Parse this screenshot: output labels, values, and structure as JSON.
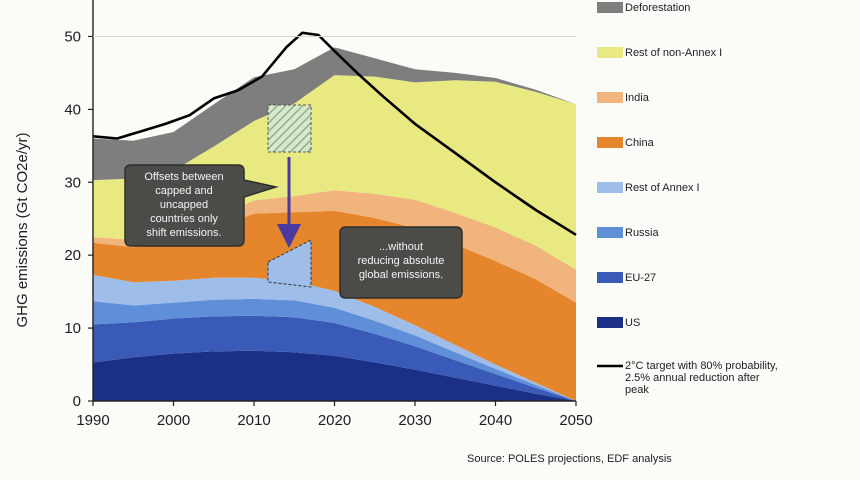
{
  "chart_data": {
    "type": "area",
    "ylabel": "GHG emissions (Gt CO2e/yr)",
    "xlabel": "",
    "xlim": [
      1990,
      2050
    ],
    "ylim": [
      0,
      55
    ],
    "x_ticks": [
      "1990",
      "2000",
      "2010",
      "2020",
      "2030",
      "2040",
      "2050"
    ],
    "y_ticks": [
      "0",
      "10",
      "20",
      "30",
      "40",
      "50"
    ],
    "x": [
      1990,
      1995,
      2000,
      2005,
      2010,
      2015,
      2020,
      2025,
      2030,
      2035,
      2040,
      2045,
      2050
    ],
    "stack_order": [
      "US",
      "EU-27",
      "Russia",
      "Rest of Annex I",
      "China",
      "India",
      "Rest of non-Annex I",
      "Deforestation"
    ],
    "series": [
      {
        "name": "US",
        "color": "#1c2f86",
        "values": [
          5.3,
          6.0,
          6.5,
          6.8,
          6.9,
          6.7,
          6.2,
          5.3,
          4.3,
          3.2,
          2.1,
          1.0,
          0.0
        ]
      },
      {
        "name": "EU-27",
        "color": "#3a5ab8",
        "values": [
          5.2,
          4.8,
          4.8,
          4.8,
          4.8,
          4.8,
          4.5,
          3.9,
          3.2,
          2.4,
          1.6,
          0.8,
          0.0
        ]
      },
      {
        "name": "Russia",
        "color": "#5f8fd8",
        "values": [
          3.2,
          2.3,
          2.2,
          2.3,
          2.3,
          2.3,
          2.1,
          1.8,
          1.5,
          1.1,
          0.7,
          0.4,
          0.0
        ]
      },
      {
        "name": "Rest of Annex I",
        "color": "#9ebde8",
        "values": [
          3.6,
          3.2,
          3.0,
          3.0,
          2.9,
          2.6,
          2.3,
          1.9,
          1.4,
          1.0,
          0.6,
          0.3,
          0.0
        ]
      },
      {
        "name": "China",
        "color": "#e5862d",
        "values": [
          4.4,
          4.8,
          5.3,
          6.8,
          8.8,
          9.5,
          11.0,
          12.2,
          13.3,
          13.8,
          14.2,
          14.2,
          13.5
        ]
      },
      {
        "name": "India",
        "color": "#f0b47c",
        "values": [
          0.8,
          1.0,
          1.2,
          1.5,
          1.8,
          2.2,
          2.8,
          3.3,
          3.9,
          4.3,
          4.6,
          4.6,
          4.5
        ]
      },
      {
        "name": "Rest of non-Annex I",
        "color": "#e9e981",
        "values": [
          7.8,
          8.4,
          8.6,
          9.7,
          10.9,
          12.7,
          15.8,
          16.1,
          16.1,
          18.2,
          20.0,
          21.1,
          22.7
        ]
      },
      {
        "name": "Deforestation",
        "color": "#7e7e7e",
        "values": [
          5.7,
          5.2,
          5.3,
          5.8,
          6.0,
          4.7,
          3.8,
          2.5,
          1.8,
          1.0,
          0.5,
          0.3,
          0.0
        ]
      }
    ],
    "target_line": {
      "name": "2°C target with 80% probability, 2.5% annual reduction after peak",
      "color": "#000000",
      "x": [
        1990,
        1993,
        1996,
        1999,
        2002,
        2005,
        2008,
        2011,
        2014,
        2016,
        2018,
        2020,
        2023,
        2026,
        2030,
        2035,
        2040,
        2045,
        2050
      ],
      "values": [
        36.3,
        36.0,
        37.0,
        38.0,
        39.2,
        41.5,
        42.6,
        44.5,
        48.5,
        50.5,
        50.2,
        48.0,
        44.8,
        41.8,
        38.0,
        34.0,
        30.0,
        26.2,
        22.8
      ]
    },
    "legend": [
      {
        "label": "Deforestation",
        "color": "#7e7e7e",
        "kind": "box"
      },
      {
        "label": "Rest of non-Annex I",
        "color": "#e9e981",
        "kind": "box"
      },
      {
        "label": "India",
        "color": "#f0b47c",
        "kind": "box"
      },
      {
        "label": "China",
        "color": "#e5862d",
        "kind": "box"
      },
      {
        "label": "Rest of Annex I",
        "color": "#9ebde8",
        "kind": "box"
      },
      {
        "label": "Russia",
        "color": "#5f8fd8",
        "kind": "box"
      },
      {
        "label": "EU-27",
        "color": "#3a5ab8",
        "kind": "box"
      },
      {
        "label": "US",
        "color": "#1c2f86",
        "kind": "box"
      },
      {
        "label": "2°C target with 80% probability, 2.5% annual reduction after peak",
        "lines": [
          "2°C target with 80% probability,",
          "2.5% annual reduction after",
          "peak"
        ],
        "color": "#000000",
        "kind": "line"
      }
    ],
    "annotations": {
      "callout_left": [
        "Offsets between",
        "capped and",
        "uncapped",
        "countries only",
        "shift emissions."
      ],
      "callout_right": [
        "...without",
        "reducing absolute",
        "global emissions."
      ]
    },
    "source": "Source: POLES projections, EDF analysis",
    "legend_position": "right",
    "grid": false
  }
}
